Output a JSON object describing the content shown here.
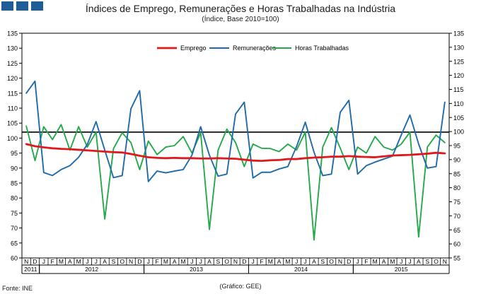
{
  "header": {
    "title": "Índices de Emprego, Remunerações e Horas Trabalhadas na Indústria",
    "subtitle": "(Índice, Base 2010=100)"
  },
  "footer": {
    "source": "Fonte: INE",
    "credit": "(Gráfico: GEE)"
  },
  "colors": {
    "emprego": "#e0191c",
    "remuneracoes": "#1f6aa8",
    "horas": "#25a94a",
    "reference": "#000000",
    "logo": "#1f5d99"
  },
  "chart_data": {
    "type": "line",
    "title": "Índices de Emprego, Remunerações e Horas Trabalhadas na Indústria",
    "subtitle": "(Índice, Base 2010=100)",
    "xlabel": "",
    "ylabel": "",
    "ylim": [
      60,
      135
    ],
    "y_ticks": [
      60,
      65,
      70,
      75,
      80,
      85,
      90,
      95,
      100,
      105,
      110,
      115,
      120,
      125,
      130,
      135
    ],
    "y2lim": [
      55,
      135
    ],
    "y2_ticks": [
      55,
      60,
      65,
      70,
      75,
      80,
      85,
      90,
      95,
      100,
      105,
      110,
      115,
      120,
      125,
      130,
      135
    ],
    "reference_line": 102,
    "legend_position": "top-center",
    "x": [
      "N",
      "D",
      "J",
      "F",
      "M",
      "A",
      "M",
      "J",
      "J",
      "A",
      "S",
      "O",
      "N",
      "D",
      "J",
      "F",
      "M",
      "A",
      "M",
      "J",
      "J",
      "A",
      "S",
      "O",
      "N",
      "D",
      "J",
      "F",
      "M",
      "A",
      "M",
      "J",
      "J",
      "A",
      "S",
      "O",
      "N",
      "D",
      "J",
      "F",
      "M",
      "A",
      "M",
      "J",
      "J",
      "A",
      "S",
      "O",
      "N"
    ],
    "year_labels": [
      {
        "label": "2011",
        "start": 0,
        "end": 1
      },
      {
        "label": "2012",
        "start": 2,
        "end": 13
      },
      {
        "label": "2013",
        "start": 14,
        "end": 25
      },
      {
        "label": "2014",
        "start": 26,
        "end": 37
      },
      {
        "label": "2015",
        "start": 38,
        "end": 48
      }
    ],
    "series": [
      {
        "name": "Emprego",
        "color": "#e0191c",
        "values": [
          98,
          97.3,
          96.9,
          96.6,
          96.4,
          96.3,
          96.1,
          95.9,
          95.7,
          95.5,
          95.3,
          95.2,
          94.7,
          94.1,
          93.6,
          93.4,
          93.3,
          93.4,
          93.3,
          93.3,
          93.2,
          93.2,
          93.3,
          93.2,
          93.1,
          92.8,
          92.5,
          92.4,
          92.6,
          92.7,
          93,
          93,
          93.3,
          93.5,
          93.6,
          93.8,
          93.8,
          94,
          93.8,
          93.7,
          93.6,
          93.9,
          94.2,
          94.3,
          94.4,
          94.6,
          94.8,
          95.1,
          94.9
        ]
      },
      {
        "name": "Remunerações",
        "color": "#1f6aa8",
        "values": [
          115,
          119,
          88.5,
          87.5,
          89.5,
          90.8,
          93.6,
          97.9,
          105.5,
          96,
          86.8,
          87.5,
          109.8,
          115.8,
          85.5,
          89,
          88.4,
          89,
          89.5,
          94.3,
          103.8,
          94.3,
          87.3,
          88,
          108,
          112,
          86.7,
          88.6,
          88.6,
          89.7,
          90.5,
          97.2,
          105.3,
          95.3,
          87.5,
          88,
          108.6,
          112.6,
          88,
          90.8,
          92,
          93,
          94,
          101,
          107.7,
          98,
          90,
          90.5,
          112
        ]
      },
      {
        "name": "Horas Trabalhadas",
        "color": "#25a94a",
        "values": [
          104,
          92.5,
          103.8,
          99.5,
          104.5,
          96,
          103.8,
          97,
          102,
          73,
          96.5,
          101.8,
          98.5,
          89.5,
          99,
          94.5,
          97,
          97.5,
          100.5,
          95,
          101.8,
          69.5,
          96,
          103,
          98.5,
          90.5,
          98,
          96.6,
          96.5,
          95.5,
          98,
          96,
          102,
          66,
          97,
          103.5,
          96.7,
          89.5,
          97,
          95,
          100.5,
          97,
          96,
          98,
          102,
          67,
          97,
          101,
          98.5
        ]
      }
    ]
  }
}
